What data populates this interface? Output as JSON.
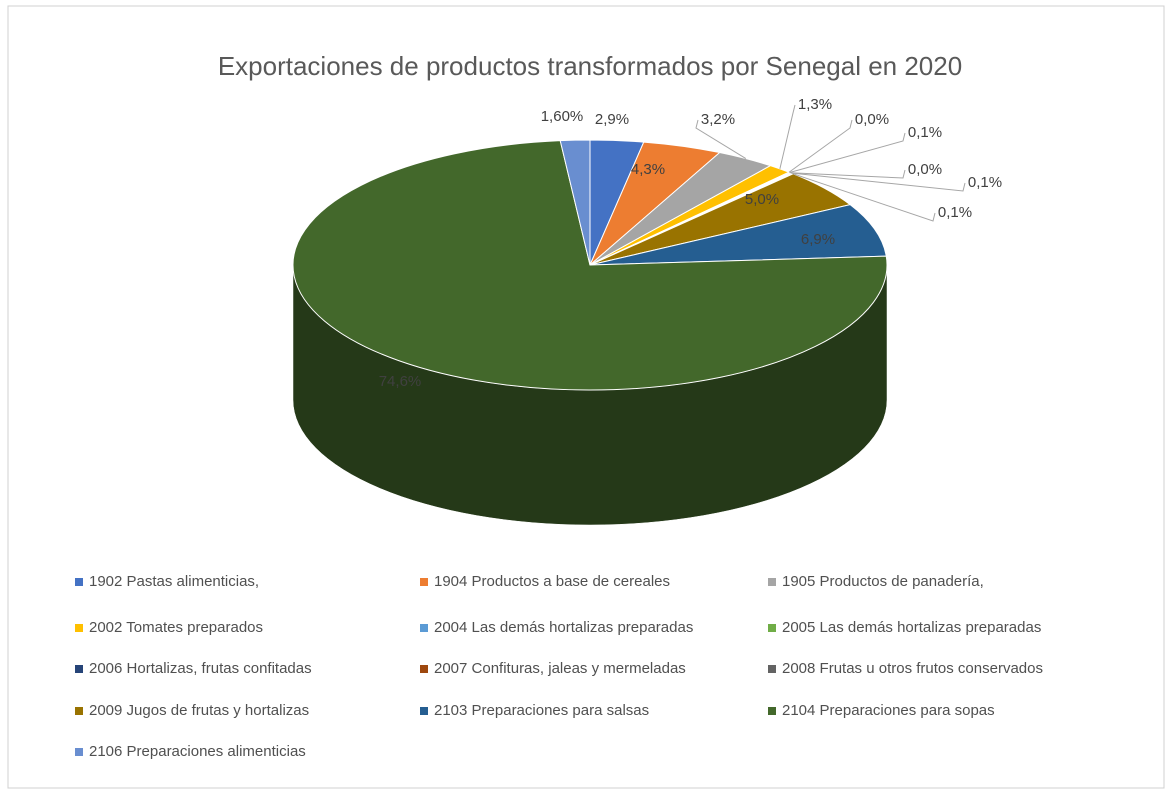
{
  "chart_data": {
    "type": "pie",
    "title": "Exportaciones de productos transformados por Senegal en 2020",
    "categories": [
      "1902 Pastas alimenticias,",
      "1904 Productos a base de cereales",
      "1905 Productos de panadería,",
      "2002  Tomates preparados",
      "2004 Las demás hortalizas preparadas",
      "2005  Las demás hortalizas preparadas",
      "2006 Hortalizas, frutas confitadas",
      "2007 Confituras, jaleas y mermeladas",
      "2008 Frutas u otros frutos conservados",
      "2009 Jugos de frutas y hortalizas",
      "2103 Preparaciones para salsas",
      "2104 Preparaciones para sopas",
      "2106 Preparaciones alimenticias"
    ],
    "values": [
      2.9,
      4.3,
      3.2,
      1.3,
      0.0,
      0.1,
      0.0,
      0.1,
      0.1,
      5.0,
      6.9,
      74.6,
      1.6
    ],
    "value_labels": [
      "2,9%",
      "4,3%",
      "3,2%",
      "1,3%",
      "0,0%",
      "0,1%",
      "0,0%",
      "0,1%",
      "0,1%",
      "5,0%",
      "6,9%",
      "74,6%",
      "1,60%"
    ],
    "colors": [
      "#4472c4",
      "#ed7d31",
      "#a5a5a5",
      "#ffc000",
      "#5b9bd5",
      "#70ad47",
      "#264478",
      "#9e480e",
      "#636363",
      "#997300",
      "#255e91",
      "#43682b",
      "#698ed0"
    ],
    "legend": "bottom"
  }
}
